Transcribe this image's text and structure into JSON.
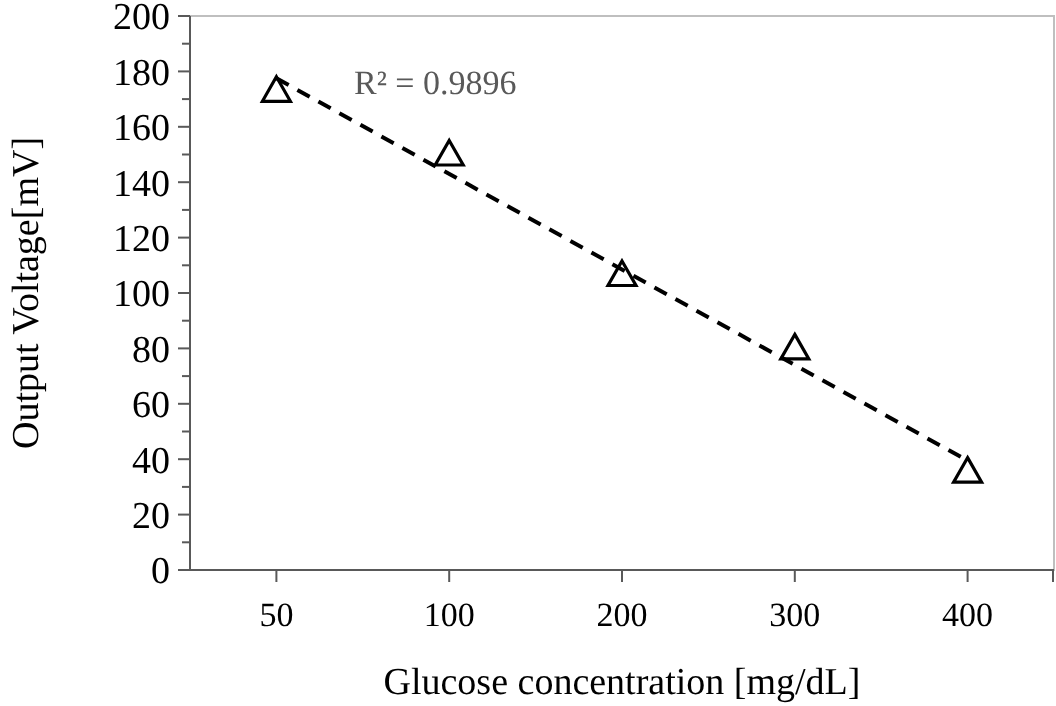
{
  "chart_data": {
    "type": "scatter",
    "xlabel": "Glucose concentration [mg/dL]",
    "ylabel": "Output Voltage[mV]",
    "categories": [
      "50",
      "100",
      "200",
      "300",
      "400"
    ],
    "series": [
      {
        "color": "#000000",
        "marker": "triangle",
        "values": [
          173,
          150,
          106.5,
          80,
          35.5
        ]
      },
      {
        "type": "line",
        "color": "#000000",
        "line_style": "dashed",
        "marker": "none",
        "x": [
          "50",
          "400"
        ],
        "values": [
          177.5,
          39.5
        ]
      }
    ],
    "annotations": [
      "R² = 0.9896"
    ],
    "ylim": [
      0,
      200
    ],
    "yticks": [
      0,
      {
        "value": 10,
        "label": null
      },
      20,
      {
        "value": 30,
        "label": null
      },
      40,
      {
        "value": 50,
        "label": null
      },
      60,
      {
        "value": 70,
        "label": null
      },
      80,
      {
        "value": 90,
        "label": null
      },
      100,
      {
        "value": 110,
        "label": null
      },
      120,
      {
        "value": 130,
        "label": null
      },
      140,
      {
        "value": 150,
        "label": null
      },
      160,
      {
        "value": 170,
        "label": null
      },
      180,
      {
        "value": 190,
        "label": null
      },
      200
    ],
    "grid": false
  }
}
